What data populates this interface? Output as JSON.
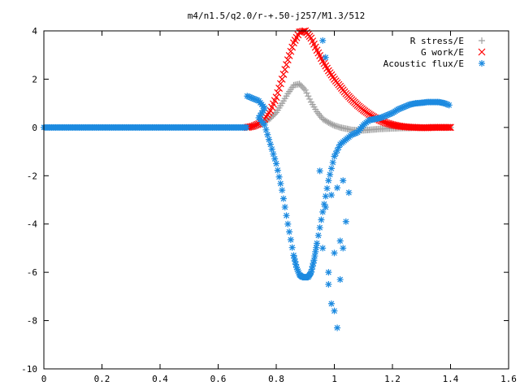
{
  "chart_data": {
    "type": "scatter",
    "title": "m4/n1.5/q2.0/r-+.50-j257/M1.3/512",
    "xlabel": "",
    "ylabel": "",
    "xlim": [
      0,
      1.6
    ],
    "ylim": [
      -10,
      4
    ],
    "xticks": [
      "0",
      "0.2",
      "0.4",
      "0.6",
      "0.8",
      "1",
      "1.2",
      "1.4",
      "1.6"
    ],
    "yticks": [
      "4",
      "2",
      "0",
      "-2",
      "-4",
      "-6",
      "-8",
      "-10"
    ],
    "grid": false,
    "legend_position": "top-right",
    "series": [
      {
        "name": "R stress/E",
        "marker": "plus",
        "color": "#a0a0a0",
        "x": [
          0.7,
          0.72,
          0.74,
          0.76,
          0.78,
          0.8,
          0.82,
          0.84,
          0.86,
          0.88,
          0.9,
          0.92,
          0.94,
          0.96,
          0.98,
          1.0,
          1.02,
          1.04,
          1.06,
          1.08,
          1.1,
          1.12,
          1.14,
          1.16,
          1.18,
          1.2,
          1.22,
          1.24,
          1.26,
          1.28,
          1.3,
          1.32,
          1.34,
          1.36,
          1.38,
          1.4
        ],
        "y": [
          0.0,
          0.05,
          0.12,
          0.22,
          0.38,
          0.62,
          1.0,
          1.4,
          1.75,
          1.8,
          1.55,
          1.05,
          0.65,
          0.35,
          0.2,
          0.08,
          0.0,
          -0.05,
          -0.1,
          -0.12,
          -0.12,
          -0.1,
          -0.08,
          -0.06,
          -0.05,
          -0.04,
          -0.03,
          -0.02,
          -0.02,
          -0.01,
          -0.01,
          0.0,
          0.0,
          0.0,
          0.0,
          0.0
        ]
      },
      {
        "name": "G work/E",
        "marker": "cross",
        "color": "#ff0000",
        "x": [
          0.7,
          0.72,
          0.74,
          0.76,
          0.78,
          0.8,
          0.82,
          0.84,
          0.86,
          0.88,
          0.9,
          0.92,
          0.94,
          0.96,
          0.98,
          1.0,
          1.02,
          1.04,
          1.06,
          1.08,
          1.1,
          1.12,
          1.14,
          1.16,
          1.18,
          1.2,
          1.22,
          1.24,
          1.26,
          1.28,
          1.3,
          1.32,
          1.34,
          1.36,
          1.38,
          1.4
        ],
        "y": [
          0.0,
          0.05,
          0.15,
          0.35,
          0.7,
          1.25,
          2.0,
          2.8,
          3.5,
          3.95,
          4.0,
          3.7,
          3.2,
          2.75,
          2.35,
          2.0,
          1.7,
          1.4,
          1.15,
          0.92,
          0.72,
          0.55,
          0.4,
          0.28,
          0.18,
          0.11,
          0.06,
          0.03,
          0.01,
          0.0,
          -0.01,
          -0.01,
          0.0,
          0.0,
          0.0,
          0.0
        ]
      },
      {
        "name": "Acoustic flux/E",
        "marker": "star",
        "color": "#1c8ae0",
        "x": [
          0.0,
          0.05,
          0.1,
          0.15,
          0.2,
          0.25,
          0.3,
          0.35,
          0.4,
          0.45,
          0.5,
          0.55,
          0.6,
          0.65,
          0.7,
          0.7,
          0.72,
          0.74,
          0.76,
          0.74,
          0.76,
          0.78,
          0.8,
          0.82,
          0.84,
          0.86,
          0.87,
          0.88,
          0.89,
          0.9,
          0.91,
          0.92,
          0.93,
          0.94,
          0.96,
          0.98,
          1.0,
          1.02,
          1.04,
          1.06,
          1.08,
          1.1,
          1.12,
          1.14,
          1.16,
          1.18,
          1.2,
          1.22,
          1.24,
          1.26,
          1.28,
          1.3,
          1.32,
          1.34,
          1.36,
          1.38,
          1.4,
          0.96,
          0.98,
          0.99,
          1.0,
          1.01,
          1.02,
          1.03,
          1.04,
          0.97,
          0.99,
          1.01,
          1.03,
          0.95,
          0.98,
          1.0,
          1.02,
          1.05,
          0.97,
          0.96
        ],
        "y": [
          0.0,
          0.0,
          0.0,
          0.0,
          0.0,
          0.0,
          0.0,
          0.0,
          0.0,
          0.0,
          0.0,
          0.0,
          0.0,
          0.0,
          0.0,
          1.3,
          1.2,
          1.1,
          0.8,
          0.4,
          0.1,
          -0.7,
          -1.5,
          -2.6,
          -4.0,
          -5.3,
          -5.8,
          -6.1,
          -6.2,
          -6.2,
          -6.2,
          -6.0,
          -5.5,
          -4.8,
          -3.5,
          -2.2,
          -1.2,
          -0.7,
          -0.5,
          -0.3,
          -0.2,
          0.1,
          0.3,
          0.35,
          0.4,
          0.5,
          0.6,
          0.75,
          0.85,
          0.95,
          1.0,
          1.02,
          1.05,
          1.05,
          1.05,
          1.0,
          0.9,
          -5.0,
          -6.5,
          -7.3,
          -7.6,
          -8.3,
          -6.3,
          -5.0,
          -3.9,
          -3.3,
          -2.8,
          -2.5,
          -2.2,
          -1.8,
          -6.0,
          -5.2,
          -4.7,
          -2.7,
          2.9,
          3.6
        ]
      }
    ]
  }
}
